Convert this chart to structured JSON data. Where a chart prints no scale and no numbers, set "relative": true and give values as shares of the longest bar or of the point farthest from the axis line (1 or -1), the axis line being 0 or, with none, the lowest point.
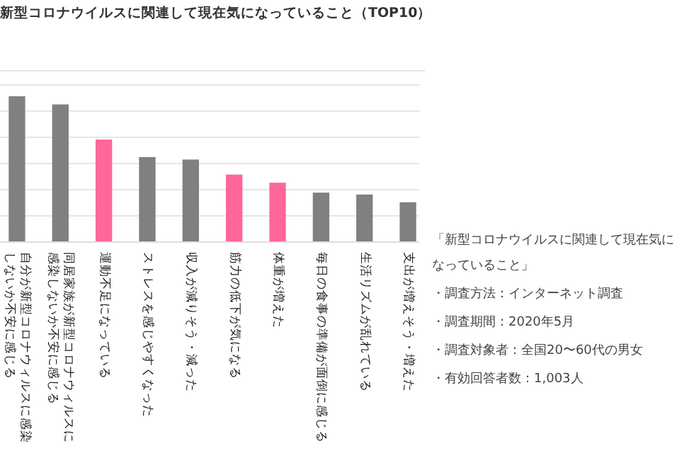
{
  "chart_data": {
    "type": "bar",
    "title": "新型コロナウイルスに関連して現在気になっていること（TOP10）",
    "relative": true,
    "grid": true,
    "categories": [
      "自分が新型コロナウィルスに感染しないか不安に感じる",
      "同居家族が新型コロナウィルスに感染しないか不安に感じる",
      "運動不足になっている",
      "ストレスを感じやすくなった",
      "収入が減りそう・減った",
      "筋力の低下が気になる",
      "体重が増えた",
      "毎日の食事の準備が面倒に感じる",
      "生活リズムが乱れている",
      "支出が増えそう・増えた"
    ],
    "values": [
      1,
      0.944,
      0.703,
      0.583,
      0.566,
      0.463,
      0.407,
      0.339,
      0.326,
      0.273
    ],
    "colors": [
      "#808080",
      "#808080",
      "#ff6699",
      "#808080",
      "#808080",
      "#ff6699",
      "#ff6699",
      "#808080",
      "#808080",
      "#808080"
    ],
    "annotations": [
      "「新型コロナウイルスに関連して現在気になっていること」",
      "・調査方法：インターネット調査",
      "・調査期間：2020年5月",
      "・調査対象者：全国20〜60代の男女",
      "・有効回答者数：1,003人"
    ]
  }
}
